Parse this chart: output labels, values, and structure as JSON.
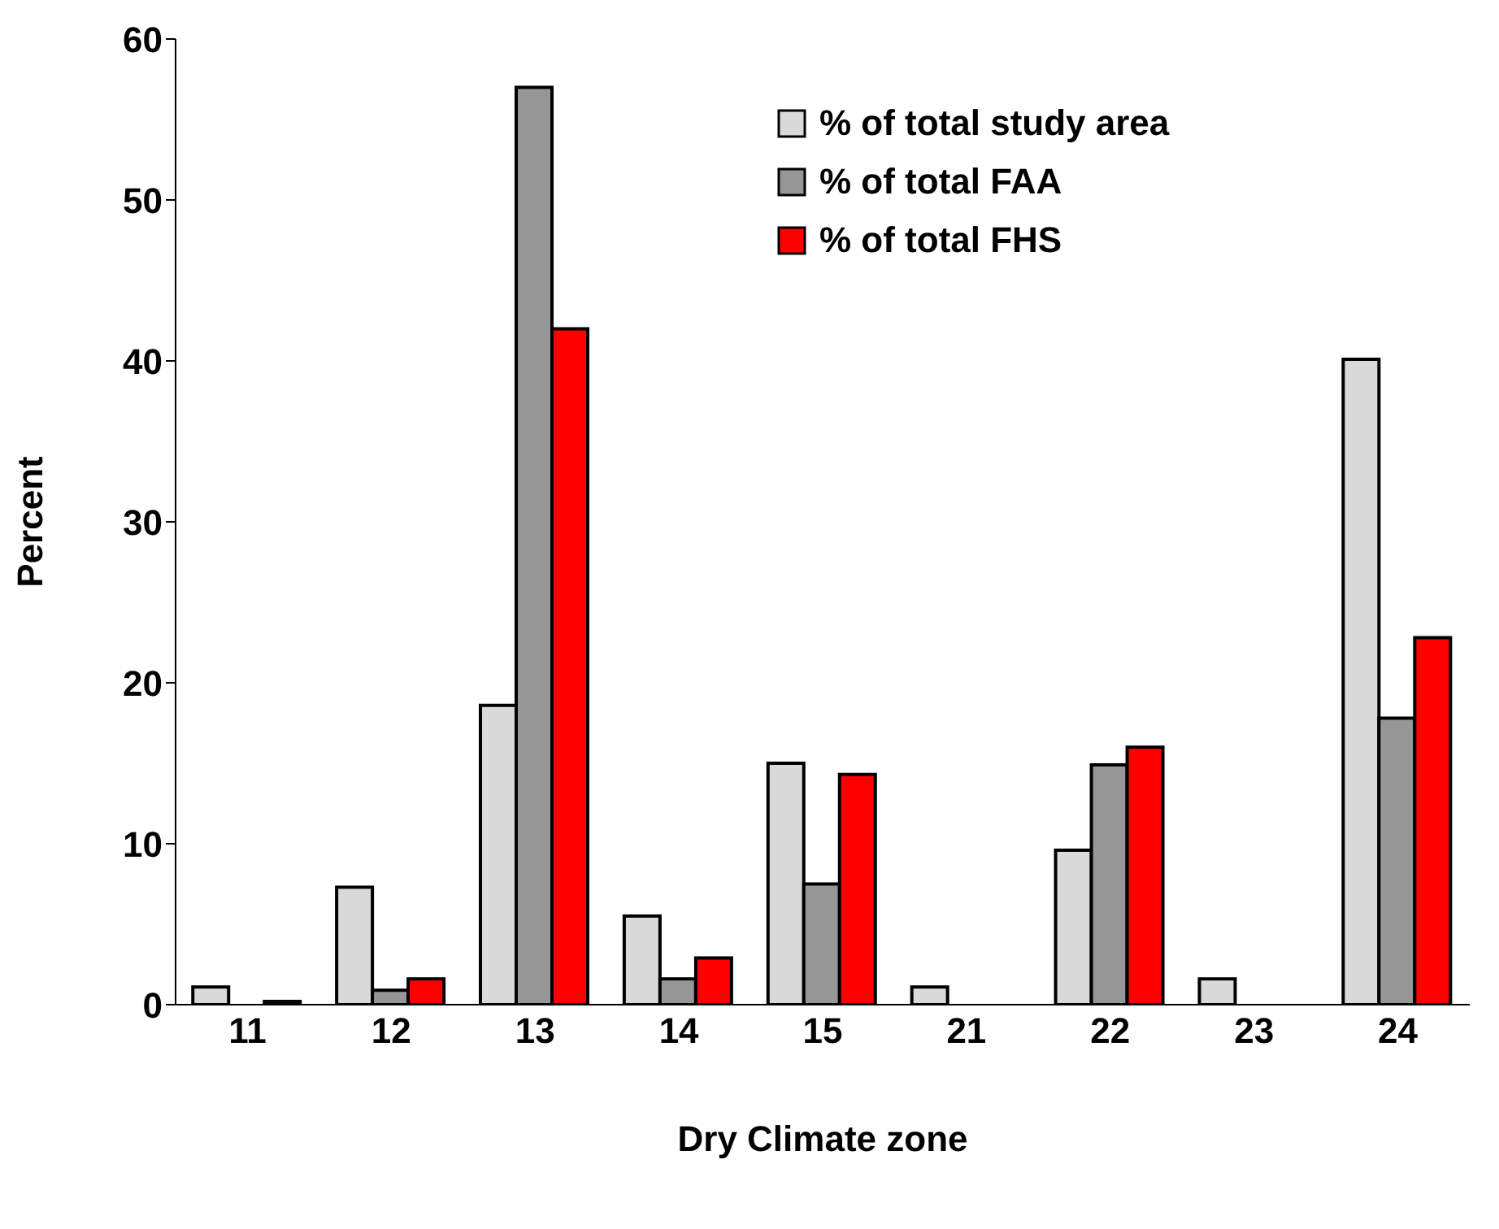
{
  "chart_data": {
    "type": "bar",
    "xlabel": "Dry Climate zone",
    "ylabel": "Percent",
    "categories": [
      "11",
      "12",
      "13",
      "14",
      "15",
      "21",
      "22",
      "23",
      "24"
    ],
    "series": [
      {
        "name": "% of total study area",
        "color": "#d9d9d9",
        "values": [
          1.1,
          7.3,
          18.6,
          5.5,
          15.0,
          1.1,
          9.6,
          1.6,
          40.1
        ]
      },
      {
        "name": "% of total FAA",
        "color": "#969696",
        "values": [
          0,
          0.9,
          57.0,
          1.6,
          7.5,
          0,
          14.9,
          0,
          17.8
        ]
      },
      {
        "name": "% of total FHS",
        "color": "#ff0000",
        "values": [
          0.2,
          1.6,
          42.0,
          2.9,
          14.3,
          0,
          16.0,
          0,
          22.8
        ]
      }
    ],
    "ylim": [
      0,
      60
    ],
    "yticks": [
      0,
      10,
      20,
      30,
      40,
      50,
      60
    ],
    "grid": false,
    "legend": "top right"
  }
}
